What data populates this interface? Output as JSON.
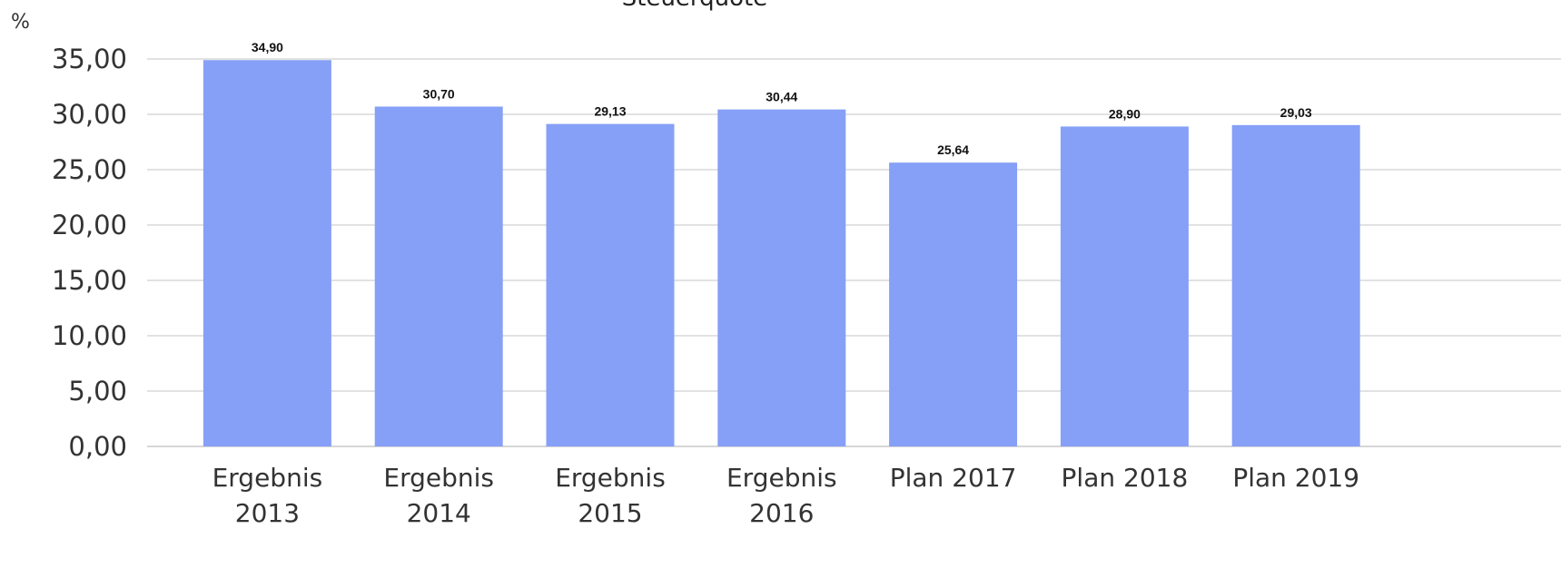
{
  "chart_data": {
    "type": "bar",
    "title": "Steuerquote",
    "unit_label": "%",
    "categories": [
      [
        "Ergebnis",
        "2013"
      ],
      [
        "Ergebnis",
        "2014"
      ],
      [
        "Ergebnis",
        "2015"
      ],
      [
        "Ergebnis",
        "2016"
      ],
      [
        "Plan 2017"
      ],
      [
        "Plan 2018"
      ],
      [
        "Plan 2019"
      ]
    ],
    "values": [
      34.9,
      30.7,
      29.13,
      30.44,
      25.64,
      28.9,
      29.03
    ],
    "data_labels": [
      "34,90",
      "30,70",
      "29,13",
      "30,44",
      "25,64",
      "28,90",
      "29,03"
    ],
    "ylim": [
      0,
      35
    ],
    "yticks": [
      0,
      5,
      10,
      15,
      20,
      25,
      30,
      35
    ],
    "ytick_labels": [
      "0,00",
      "5,00",
      "10,00",
      "15,00",
      "20,00",
      "25,00",
      "30,00",
      "35,00"
    ],
    "grid": true,
    "legend": "none",
    "bar_color": "#86a0f7"
  }
}
